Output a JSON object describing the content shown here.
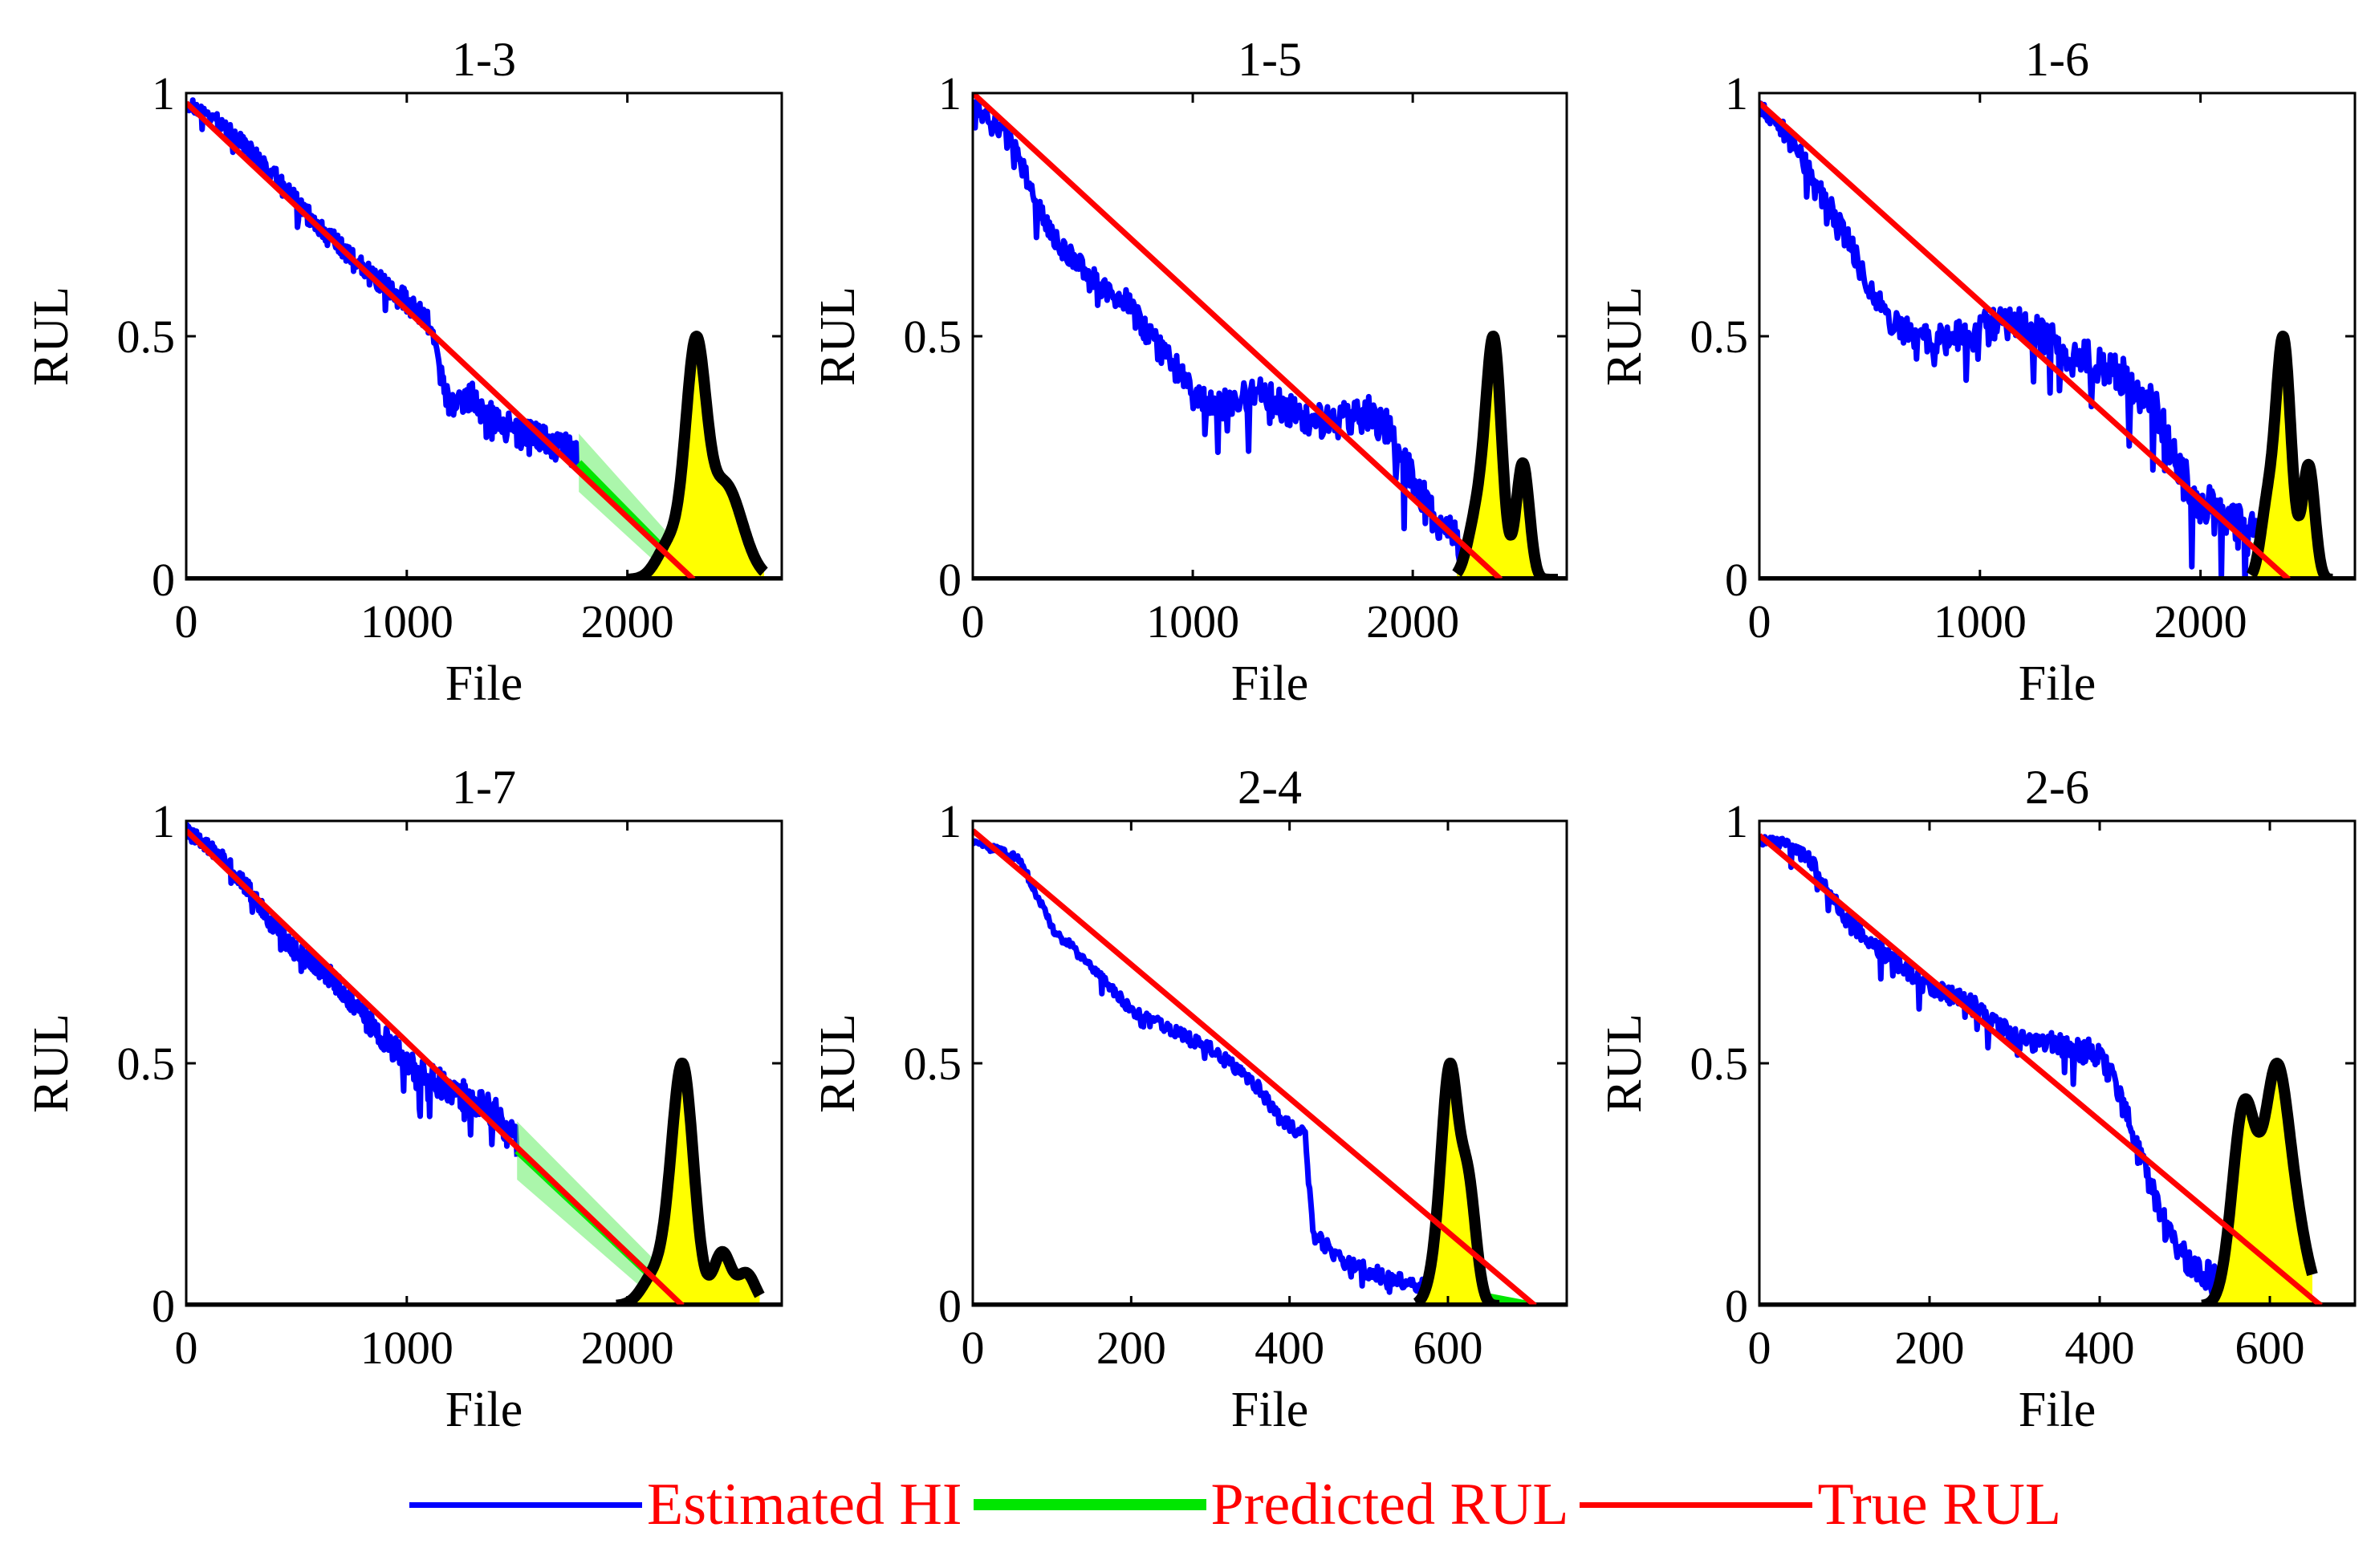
{
  "colors": {
    "hi": "#0000ff",
    "predicted": "#00e600",
    "predicted_band": "#66ee66",
    "true": "#ff0000",
    "pdf_fill": "#ffff00",
    "pdf_line": "#000000",
    "legend_text": "#ff0000"
  },
  "legend": [
    {
      "label": "Estimated HI",
      "color": "#0000ff",
      "kind": "hi"
    },
    {
      "label": "Predicted RUL",
      "color": "#00e600",
      "kind": "predicted"
    },
    {
      "label": "True RUL",
      "color": "#ff0000",
      "kind": "true"
    }
  ],
  "chart_data": [
    {
      "type": "line",
      "title": "1-3",
      "xlabel": "File",
      "ylabel": "RUL",
      "xlim": [
        0,
        2700
      ],
      "ylim": [
        0,
        1
      ],
      "xticks": [
        0,
        1000,
        2000
      ],
      "yticks": [
        0,
        0.5,
        1
      ],
      "ytick_labels": [
        "0",
        "0.5",
        "1"
      ],
      "true_rul": {
        "x": [
          0,
          2300
        ],
        "y": [
          0.98,
          0
        ]
      },
      "hi_points": [
        [
          0,
          0.98
        ],
        [
          150,
          0.94
        ],
        [
          250,
          0.9
        ],
        [
          400,
          0.83
        ],
        [
          550,
          0.75
        ],
        [
          700,
          0.68
        ],
        [
          850,
          0.62
        ],
        [
          1000,
          0.57
        ],
        [
          1100,
          0.53
        ],
        [
          1150,
          0.43
        ],
        [
          1200,
          0.35
        ],
        [
          1300,
          0.38
        ],
        [
          1400,
          0.33
        ],
        [
          1500,
          0.3
        ],
        [
          1600,
          0.29
        ],
        [
          1700,
          0.27
        ],
        [
          1780,
          0.25
        ]
      ],
      "hi_noise": 0.035,
      "predicted": {
        "x": [
          1780,
          2300
        ],
        "y": [
          0.24,
          0
        ],
        "band": 0.06
      },
      "pdf": {
        "range": [
          2000,
          2620
        ],
        "peak_x": 2310,
        "peak_y": 0.5,
        "components": [
          [
            2310,
            45,
            0.44
          ],
          [
            2440,
            80,
            0.2
          ],
          [
            2200,
            60,
            0.08
          ]
        ]
      }
    },
    {
      "type": "line",
      "title": "1-5",
      "xlabel": "File",
      "ylabel": "RUL",
      "xlim": [
        0,
        2700
      ],
      "ylim": [
        0,
        1
      ],
      "xticks": [
        0,
        1000,
        2000
      ],
      "yticks": [
        0,
        0.5,
        1
      ],
      "ytick_labels": [
        "0",
        "0.5",
        "1"
      ],
      "true_rul": {
        "x": [
          0,
          2400
        ],
        "y": [
          1,
          0
        ]
      },
      "hi_points": [
        [
          0,
          0.97
        ],
        [
          100,
          0.94
        ],
        [
          200,
          0.88
        ],
        [
          300,
          0.76
        ],
        [
          400,
          0.68
        ],
        [
          500,
          0.64
        ],
        [
          600,
          0.6
        ],
        [
          700,
          0.57
        ],
        [
          800,
          0.5
        ],
        [
          900,
          0.45
        ],
        [
          1000,
          0.38
        ],
        [
          1100,
          0.35
        ],
        [
          1200,
          0.37
        ],
        [
          1300,
          0.38
        ],
        [
          1400,
          0.36
        ],
        [
          1500,
          0.33
        ],
        [
          1600,
          0.32
        ],
        [
          1700,
          0.33
        ],
        [
          1800,
          0.34
        ],
        [
          1900,
          0.31
        ],
        [
          2000,
          0.2
        ],
        [
          2100,
          0.12
        ],
        [
          2200,
          0.08
        ],
        [
          2250,
          0.07
        ]
      ],
      "hi_noise": 0.045,
      "predicted": {
        "x": [
          2250,
          2400
        ],
        "y": [
          0.07,
          0
        ],
        "band": 0.02
      },
      "pdf": {
        "range": [
          2200,
          2660
        ],
        "peak_x": 2370,
        "peak_y": 0.5,
        "components": [
          [
            2370,
            35,
            0.38
          ],
          [
            2500,
            30,
            0.2
          ],
          [
            2300,
            45,
            0.12
          ]
        ]
      }
    },
    {
      "type": "line",
      "title": "1-6",
      "xlabel": "File",
      "ylabel": "RUL",
      "xlim": [
        0,
        2700
      ],
      "ylim": [
        0,
        1
      ],
      "xticks": [
        0,
        1000,
        2000
      ],
      "yticks": [
        0,
        0.5,
        1
      ],
      "ytick_labels": [
        "0",
        "0.5",
        "1"
      ],
      "true_rul": {
        "x": [
          0,
          2400
        ],
        "y": [
          0.98,
          0
        ]
      },
      "hi_points": [
        [
          0,
          0.97
        ],
        [
          100,
          0.93
        ],
        [
          200,
          0.86
        ],
        [
          300,
          0.78
        ],
        [
          400,
          0.7
        ],
        [
          500,
          0.6
        ],
        [
          600,
          0.53
        ],
        [
          700,
          0.5
        ],
        [
          800,
          0.49
        ],
        [
          900,
          0.5
        ],
        [
          1000,
          0.52
        ],
        [
          1100,
          0.53
        ],
        [
          1200,
          0.52
        ],
        [
          1300,
          0.5
        ],
        [
          1400,
          0.46
        ],
        [
          1500,
          0.45
        ],
        [
          1600,
          0.43
        ],
        [
          1700,
          0.4
        ],
        [
          1800,
          0.35
        ],
        [
          1900,
          0.22
        ],
        [
          2000,
          0.16
        ],
        [
          2100,
          0.12
        ],
        [
          2200,
          0.1
        ],
        [
          2250,
          0.09
        ]
      ],
      "hi_noise": 0.05,
      "predicted": {
        "x": [
          2250,
          2400
        ],
        "y": [
          0.08,
          0
        ],
        "band": 0.02
      },
      "pdf": {
        "range": [
          2230,
          2600
        ],
        "peak_x": 2380,
        "peak_y": 0.5,
        "components": [
          [
            2375,
            35,
            0.38
          ],
          [
            2490,
            28,
            0.18
          ],
          [
            2300,
            30,
            0.1
          ]
        ]
      }
    },
    {
      "type": "line",
      "title": "1-7",
      "xlabel": "File",
      "ylabel": "RUL",
      "xlim": [
        0,
        2700
      ],
      "ylim": [
        0,
        1
      ],
      "xticks": [
        0,
        1000,
        2000
      ],
      "yticks": [
        0,
        0.5,
        1
      ],
      "ytick_labels": [
        "0",
        "0.5",
        "1"
      ],
      "true_rul": {
        "x": [
          0,
          2250
        ],
        "y": [
          0.98,
          0
        ]
      },
      "hi_points": [
        [
          0,
          0.98
        ],
        [
          150,
          0.93
        ],
        [
          250,
          0.88
        ],
        [
          400,
          0.78
        ],
        [
          500,
          0.73
        ],
        [
          650,
          0.68
        ],
        [
          800,
          0.6
        ],
        [
          900,
          0.55
        ],
        [
          1000,
          0.5
        ],
        [
          1100,
          0.47
        ],
        [
          1200,
          0.45
        ],
        [
          1300,
          0.42
        ],
        [
          1400,
          0.4
        ],
        [
          1500,
          0.33
        ]
      ],
      "hi_noise": 0.035,
      "predicted": {
        "x": [
          1500,
          2250
        ],
        "y": [
          0.32,
          0
        ],
        "band": 0.06
      },
      "pdf": {
        "range": [
          1950,
          2600
        ],
        "peak_x": 2250,
        "peak_y": 0.5,
        "components": [
          [
            2250,
            50,
            0.45
          ],
          [
            2430,
            40,
            0.1
          ],
          [
            2540,
            40,
            0.06
          ],
          [
            2130,
            60,
            0.06
          ]
        ]
      }
    },
    {
      "type": "line",
      "title": "2-4",
      "xlabel": "File",
      "ylabel": "RUL",
      "xlim": [
        0,
        750
      ],
      "ylim": [
        0,
        1
      ],
      "xticks": [
        0,
        200,
        400,
        600
      ],
      "yticks": [
        0,
        0.5,
        1
      ],
      "ytick_labels": [
        "0",
        "0.5",
        "1"
      ],
      "true_rul": {
        "x": [
          0,
          710
        ],
        "y": [
          0.98,
          0
        ]
      },
      "hi_points": [
        [
          0,
          0.96
        ],
        [
          30,
          0.94
        ],
        [
          60,
          0.92
        ],
        [
          80,
          0.85
        ],
        [
          100,
          0.78
        ],
        [
          150,
          0.7
        ],
        [
          200,
          0.61
        ],
        [
          250,
          0.57
        ],
        [
          300,
          0.53
        ],
        [
          340,
          0.48
        ],
        [
          360,
          0.45
        ],
        [
          390,
          0.38
        ],
        [
          420,
          0.35
        ],
        [
          430,
          0.15
        ],
        [
          460,
          0.1
        ],
        [
          500,
          0.07
        ],
        [
          540,
          0.05
        ],
        [
          580,
          0.04
        ]
      ],
      "hi_noise": 0.018,
      "predicted": {
        "x": [
          580,
          710
        ],
        "y": [
          0.04,
          0
        ],
        "band": 0.01
      },
      "pdf": {
        "range": [
          560,
          665
        ],
        "peak_x": 605,
        "peak_y": 0.5,
        "components": [
          [
            603,
            10,
            0.42
          ],
          [
            625,
            10,
            0.25
          ],
          [
            590,
            12,
            0.1
          ]
        ]
      }
    },
    {
      "type": "line",
      "title": "2-6",
      "xlabel": "File",
      "ylabel": "RUL",
      "xlim": [
        0,
        700
      ],
      "ylim": [
        0,
        1
      ],
      "xticks": [
        0,
        200,
        400,
        600
      ],
      "yticks": [
        0,
        0.5,
        1
      ],
      "ytick_labels": [
        "0",
        "0.5",
        "1"
      ],
      "true_rul": {
        "x": [
          0,
          660
        ],
        "y": [
          0.97,
          0
        ]
      },
      "hi_points": [
        [
          0,
          0.96
        ],
        [
          30,
          0.95
        ],
        [
          60,
          0.92
        ],
        [
          100,
          0.8
        ],
        [
          150,
          0.72
        ],
        [
          200,
          0.66
        ],
        [
          250,
          0.62
        ],
        [
          300,
          0.55
        ],
        [
          350,
          0.54
        ],
        [
          400,
          0.52
        ],
        [
          420,
          0.45
        ],
        [
          450,
          0.3
        ],
        [
          470,
          0.2
        ],
        [
          490,
          0.12
        ],
        [
          510,
          0.08
        ],
        [
          540,
          0.05
        ]
      ],
      "hi_noise": 0.03,
      "predicted": {
        "x": [
          540,
          660
        ],
        "y": [
          0.05,
          0
        ],
        "band": 0.015
      },
      "pdf": {
        "range": [
          520,
          650
        ],
        "peak_x": 595,
        "peak_y": 0.5,
        "components": [
          [
            570,
            14,
            0.42
          ],
          [
            607,
            14,
            0.45
          ],
          [
            630,
            15,
            0.15
          ]
        ]
      }
    }
  ]
}
